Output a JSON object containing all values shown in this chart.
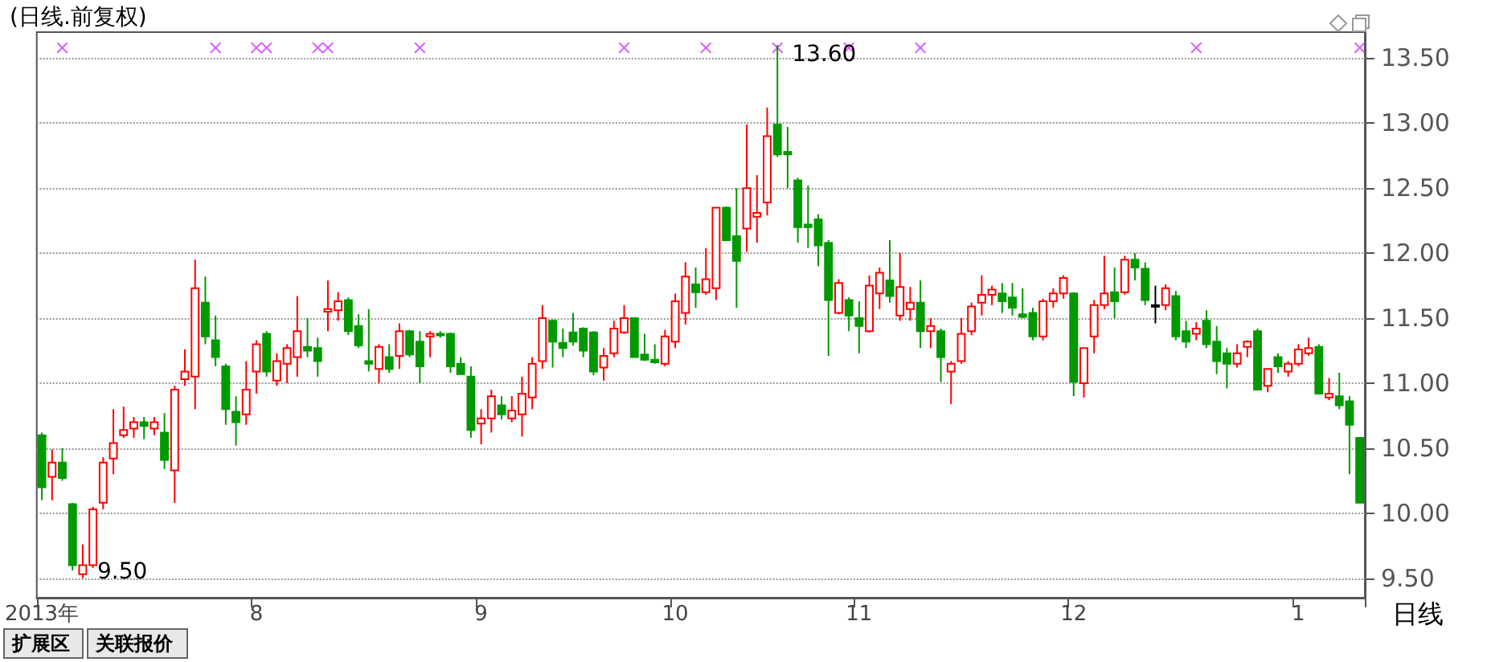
{
  "chart_data": {
    "type": "candlestick",
    "title": "(日线.前复权)",
    "xlabel": "日线",
    "categories": [
      "2013年",
      null,
      null,
      null,
      null,
      null,
      null,
      null,
      null,
      null,
      null,
      null,
      null,
      null,
      null,
      null,
      null,
      null,
      null,
      null,
      null,
      "8",
      null,
      null,
      null,
      null,
      null,
      null,
      null,
      null,
      null,
      null,
      null,
      null,
      null,
      null,
      null,
      null,
      null,
      null,
      null,
      null,
      null,
      "9",
      null,
      null,
      null,
      null,
      null,
      null,
      null,
      null,
      null,
      null,
      null,
      null,
      null,
      null,
      null,
      null,
      null,
      null,
      "10",
      null,
      null,
      null,
      null,
      null,
      null,
      null,
      null,
      null,
      null,
      null,
      null,
      null,
      null,
      null,
      null,
      null,
      "11",
      null,
      null,
      null,
      null,
      null,
      null,
      null,
      null,
      null,
      null,
      null,
      null,
      null,
      null,
      null,
      null,
      null,
      null,
      null,
      null,
      "12",
      null,
      null,
      null,
      null,
      null,
      null,
      null,
      null,
      null,
      null,
      null,
      null,
      null,
      null,
      null,
      null,
      null,
      null,
      null,
      null,
      null,
      "1",
      null,
      null,
      null,
      null,
      null,
      null
    ],
    "ohlc": [
      [
        10.6,
        10.62,
        10.1,
        10.2
      ],
      [
        10.28,
        10.49,
        10.1,
        10.39
      ],
      [
        10.39,
        10.5,
        10.25,
        10.27
      ],
      [
        10.07,
        10.08,
        9.56,
        9.6
      ],
      [
        9.53,
        9.76,
        9.5,
        9.6
      ],
      [
        9.6,
        10.05,
        9.58,
        10.03
      ],
      [
        10.08,
        10.43,
        10.03,
        10.39
      ],
      [
        10.42,
        10.8,
        10.3,
        10.54
      ],
      [
        10.6,
        10.82,
        10.58,
        10.64
      ],
      [
        10.65,
        10.74,
        10.58,
        10.7
      ],
      [
        10.7,
        10.74,
        10.57,
        10.67
      ],
      [
        10.65,
        10.74,
        10.6,
        10.7
      ],
      [
        10.62,
        10.77,
        10.34,
        10.41
      ],
      [
        10.33,
        10.98,
        10.08,
        10.95
      ],
      [
        11.03,
        11.26,
        10.98,
        11.09
      ],
      [
        11.05,
        11.95,
        10.8,
        11.73
      ],
      [
        11.62,
        11.82,
        11.3,
        11.36
      ],
      [
        11.33,
        11.52,
        11.13,
        11.2
      ],
      [
        11.13,
        11.15,
        10.68,
        10.8
      ],
      [
        10.78,
        10.9,
        10.52,
        10.7
      ],
      [
        10.76,
        11.17,
        10.68,
        10.95
      ],
      [
        11.09,
        11.33,
        10.92,
        11.3
      ],
      [
        11.38,
        11.4,
        11.05,
        11.09
      ],
      [
        11.02,
        11.23,
        10.98,
        11.17
      ],
      [
        11.15,
        11.3,
        11.0,
        11.27
      ],
      [
        11.2,
        11.67,
        11.05,
        11.4
      ],
      [
        11.28,
        11.5,
        11.2,
        11.25
      ],
      [
        11.27,
        11.35,
        11.05,
        11.17
      ],
      [
        11.55,
        11.79,
        11.4,
        11.57
      ],
      [
        11.56,
        11.7,
        11.48,
        11.63
      ],
      [
        11.64,
        11.66,
        11.37,
        11.4
      ],
      [
        11.44,
        11.53,
        11.27,
        11.29
      ],
      [
        11.17,
        11.57,
        11.09,
        11.15
      ],
      [
        11.11,
        11.3,
        11.0,
        11.28
      ],
      [
        11.2,
        11.3,
        11.08,
        11.11
      ],
      [
        11.21,
        11.46,
        11.11,
        11.4
      ],
      [
        11.4,
        11.41,
        11.2,
        11.22
      ],
      [
        11.32,
        11.4,
        11.0,
        11.13
      ],
      [
        11.36,
        11.4,
        11.2,
        11.38
      ],
      [
        11.38,
        11.4,
        11.35,
        11.37
      ],
      [
        11.38,
        11.39,
        11.08,
        11.13
      ],
      [
        11.15,
        11.2,
        11.07,
        11.07
      ],
      [
        11.05,
        11.13,
        10.58,
        10.64
      ],
      [
        10.69,
        10.8,
        10.53,
        10.73
      ],
      [
        10.73,
        10.95,
        10.62,
        10.9
      ],
      [
        10.83,
        10.9,
        10.72,
        10.76
      ],
      [
        10.73,
        10.9,
        10.7,
        10.79
      ],
      [
        10.76,
        11.05,
        10.59,
        10.92
      ],
      [
        10.89,
        11.2,
        10.8,
        11.15
      ],
      [
        11.17,
        11.6,
        11.11,
        11.5
      ],
      [
        11.48,
        11.49,
        11.12,
        11.32
      ],
      [
        11.31,
        11.42,
        11.2,
        11.27
      ],
      [
        11.39,
        11.54,
        11.29,
        11.32
      ],
      [
        11.42,
        11.43,
        11.2,
        11.25
      ],
      [
        11.39,
        11.4,
        11.06,
        11.09
      ],
      [
        11.12,
        11.27,
        11.02,
        11.21
      ],
      [
        11.23,
        11.48,
        11.2,
        11.42
      ],
      [
        11.39,
        11.6,
        11.38,
        11.5
      ],
      [
        11.5,
        11.5,
        11.2,
        11.2
      ],
      [
        11.22,
        11.38,
        11.17,
        11.18
      ],
      [
        11.18,
        11.3,
        11.15,
        11.16
      ],
      [
        11.15,
        11.41,
        11.13,
        11.36
      ],
      [
        11.32,
        11.69,
        11.27,
        11.63
      ],
      [
        11.54,
        11.93,
        11.45,
        11.82
      ],
      [
        11.76,
        11.89,
        11.58,
        11.7
      ],
      [
        11.7,
        12.04,
        11.68,
        11.8
      ],
      [
        11.73,
        12.35,
        11.64,
        12.35
      ],
      [
        12.35,
        12.36,
        12.1,
        12.1
      ],
      [
        12.13,
        12.5,
        11.58,
        11.94
      ],
      [
        12.19,
        12.99,
        12.01,
        12.5
      ],
      [
        12.28,
        12.6,
        12.08,
        12.31
      ],
      [
        12.39,
        13.12,
        12.29,
        12.9
      ],
      [
        12.99,
        13.6,
        12.74,
        12.76
      ],
      [
        12.78,
        12.97,
        12.5,
        12.76
      ],
      [
        12.56,
        12.58,
        12.08,
        12.2
      ],
      [
        12.22,
        12.52,
        12.04,
        12.2
      ],
      [
        12.26,
        12.3,
        11.9,
        12.06
      ],
      [
        12.08,
        12.1,
        11.21,
        11.64
      ],
      [
        11.54,
        11.8,
        11.53,
        11.77
      ],
      [
        11.64,
        11.66,
        11.4,
        11.52
      ],
      [
        11.5,
        11.63,
        11.23,
        11.44
      ],
      [
        11.4,
        11.83,
        11.39,
        11.75
      ],
      [
        11.69,
        11.89,
        11.57,
        11.85
      ],
      [
        11.79,
        12.1,
        11.62,
        11.67
      ],
      [
        11.52,
        12.0,
        11.48,
        11.74
      ],
      [
        11.57,
        11.74,
        11.48,
        11.62
      ],
      [
        11.62,
        11.79,
        11.27,
        11.4
      ],
      [
        11.4,
        11.5,
        11.27,
        11.44
      ],
      [
        11.4,
        11.42,
        11.01,
        11.2
      ],
      [
        11.09,
        11.17,
        10.84,
        11.15
      ],
      [
        11.17,
        11.5,
        11.15,
        11.38
      ],
      [
        11.4,
        11.62,
        11.37,
        11.59
      ],
      [
        11.62,
        11.83,
        11.52,
        11.68
      ],
      [
        11.68,
        11.75,
        11.6,
        11.72
      ],
      [
        11.69,
        11.77,
        11.54,
        11.63
      ],
      [
        11.66,
        11.77,
        11.52,
        11.58
      ],
      [
        11.53,
        11.73,
        11.5,
        11.51
      ],
      [
        11.54,
        11.58,
        11.33,
        11.36
      ],
      [
        11.36,
        11.65,
        11.33,
        11.63
      ],
      [
        11.63,
        11.73,
        11.58,
        11.69
      ],
      [
        11.69,
        11.83,
        11.65,
        11.81
      ],
      [
        11.69,
        11.7,
        10.9,
        11.01
      ],
      [
        11.0,
        11.27,
        10.89,
        11.27
      ],
      [
        11.36,
        11.64,
        11.23,
        11.6
      ],
      [
        11.6,
        11.98,
        11.57,
        11.69
      ],
      [
        11.7,
        11.89,
        11.5,
        11.63
      ],
      [
        11.7,
        11.98,
        11.68,
        11.95
      ],
      [
        11.95,
        12.0,
        11.79,
        11.89
      ],
      [
        11.88,
        11.93,
        11.6,
        11.64
      ],
      [
        11.6,
        11.75,
        11.46,
        11.6
      ],
      [
        11.6,
        11.76,
        11.56,
        11.73
      ],
      [
        11.67,
        11.71,
        11.33,
        11.36
      ],
      [
        11.4,
        11.48,
        11.27,
        11.32
      ],
      [
        11.38,
        11.47,
        11.33,
        11.42
      ],
      [
        11.48,
        11.56,
        11.27,
        11.3
      ],
      [
        11.32,
        11.44,
        11.07,
        11.17
      ],
      [
        11.23,
        11.27,
        10.96,
        11.15
      ],
      [
        11.15,
        11.3,
        11.12,
        11.23
      ],
      [
        11.28,
        11.33,
        11.2,
        11.32
      ],
      [
        11.4,
        11.42,
        10.95,
        10.95
      ],
      [
        10.98,
        11.11,
        10.93,
        11.11
      ],
      [
        11.2,
        11.23,
        11.08,
        11.13
      ],
      [
        11.09,
        11.17,
        11.05,
        11.15
      ],
      [
        11.15,
        11.3,
        11.13,
        11.26
      ],
      [
        11.23,
        11.35,
        11.21,
        11.27
      ],
      [
        11.28,
        11.3,
        10.92,
        10.92
      ],
      [
        10.89,
        11.04,
        10.87,
        10.92
      ],
      [
        10.9,
        11.08,
        10.8,
        10.83
      ],
      [
        10.86,
        10.9,
        10.3,
        10.68
      ],
      [
        10.58,
        10.58,
        10.08,
        10.08
      ]
    ],
    "series": [
      {
        "type": "scatter",
        "color": "#cc33ff",
        "marker": "cross",
        "values": [
          null,
          null,
          13.58,
          null,
          null,
          null,
          null,
          null,
          null,
          null,
          null,
          null,
          null,
          null,
          null,
          null,
          null,
          13.58,
          null,
          null,
          null,
          13.58,
          13.58,
          null,
          null,
          null,
          null,
          13.58,
          13.58,
          null,
          null,
          null,
          null,
          null,
          null,
          null,
          null,
          13.58,
          null,
          null,
          null,
          null,
          null,
          null,
          null,
          null,
          null,
          null,
          null,
          null,
          null,
          null,
          null,
          null,
          null,
          null,
          null,
          13.58,
          null,
          null,
          null,
          null,
          null,
          null,
          null,
          13.58,
          null,
          null,
          null,
          null,
          null,
          null,
          13.58,
          null,
          null,
          null,
          null,
          null,
          null,
          13.58,
          null,
          null,
          null,
          null,
          null,
          null,
          13.58,
          null,
          null,
          null,
          null,
          null,
          null,
          null,
          null,
          null,
          null,
          null,
          null,
          null,
          null,
          null,
          null,
          null,
          null,
          null,
          null,
          null,
          null,
          null,
          null,
          null,
          null,
          13.58,
          null,
          null,
          null,
          null,
          null,
          null,
          null,
          null,
          null,
          null,
          null,
          null,
          null,
          null,
          null,
          13.58
        ]
      }
    ],
    "ylim": [
      9.35,
      13.7
    ],
    "yticks": [
      {
        "value": 9.5,
        "label": "9.50"
      },
      {
        "value": 10,
        "label": "10.00"
      },
      {
        "value": 10.5,
        "label": "10.50"
      },
      {
        "value": 11,
        "label": "11.00"
      },
      {
        "value": 11.5,
        "label": "11.50"
      },
      {
        "value": 12,
        "label": "12.00"
      },
      {
        "value": 12.5,
        "label": "12.50"
      },
      {
        "value": 13,
        "label": "13.00"
      },
      {
        "value": 13.5,
        "label": "13.50"
      }
    ],
    "grid": "y",
    "annotations": [
      "13.60",
      "9.50",
      "扩展区",
      "关联报价"
    ]
  }
}
